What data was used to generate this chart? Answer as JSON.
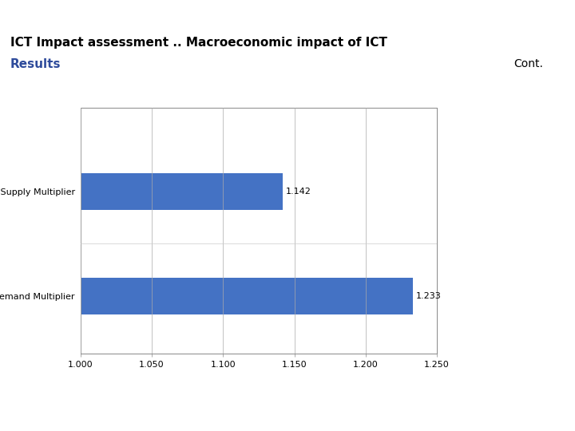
{
  "title": "ICT Impact assessment .. Macroeconomic impact of ICT",
  "subtitle": "Results",
  "cont_text": "Cont.",
  "categories": [
    "Total Supply Multiplier",
    "Total Demand Multiplier"
  ],
  "values": [
    1.142,
    1.233
  ],
  "bar_color": "#4472C4",
  "xlim": [
    1.0,
    1.25
  ],
  "xticks": [
    1.0,
    1.05,
    1.1,
    1.15,
    1.2,
    1.25
  ],
  "xtick_labels": [
    "1.000",
    "1.050",
    "1.100",
    "1.150",
    "1.200",
    "1.250"
  ],
  "title_fontsize": 11,
  "subtitle_fontsize": 11,
  "subtitle_color": "#2E4B9B",
  "title_color": "#000000",
  "background_color": "#FFFFFF",
  "header_bar_color": "#3D4F5E",
  "header_accent_color": "#6B9EA4",
  "value_label_fontsize": 8,
  "axis_label_fontsize": 8,
  "ytick_fontsize": 8
}
